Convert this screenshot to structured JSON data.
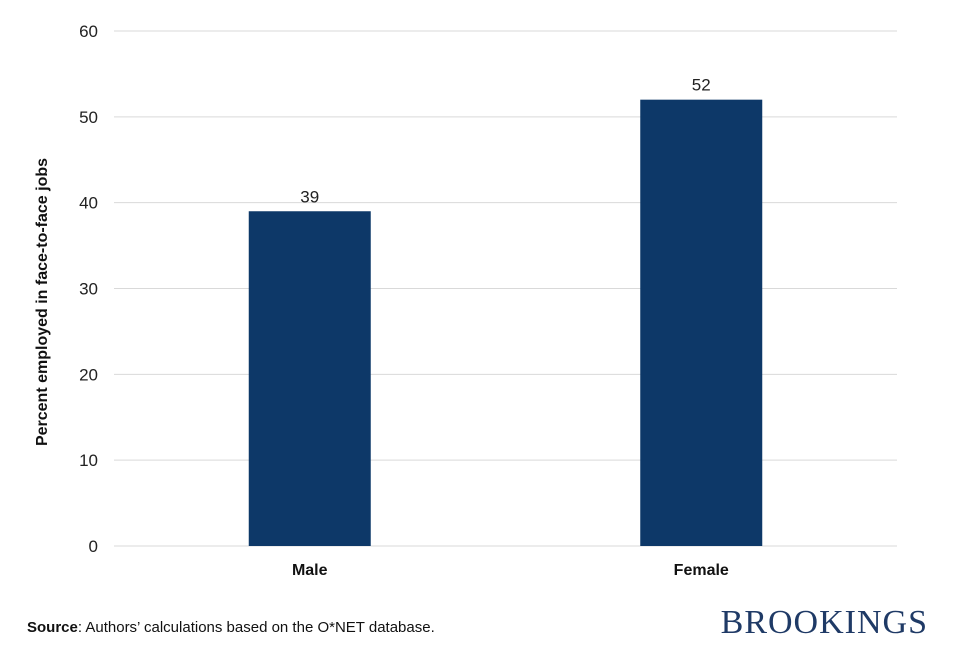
{
  "chart_data": {
    "type": "bar",
    "categories": [
      "Male",
      "Female"
    ],
    "values": [
      39,
      52
    ],
    "data_labels": [
      "39",
      "52"
    ],
    "ylabel": "Percent employed in face-to-face jobs",
    "xlabel": "",
    "ylim": [
      0,
      60
    ],
    "yticks": [
      0,
      10,
      20,
      30,
      40,
      50,
      60
    ],
    "grid": true,
    "bar_color": "#0d3868"
  },
  "footer": {
    "source_label": "Source",
    "source_text": ": Authors’ calculations based on the O*NET database.",
    "logo_text": "BROOKINGS"
  },
  "colors": {
    "grid": "#d9d9d9",
    "logo": "#1f3a66"
  }
}
